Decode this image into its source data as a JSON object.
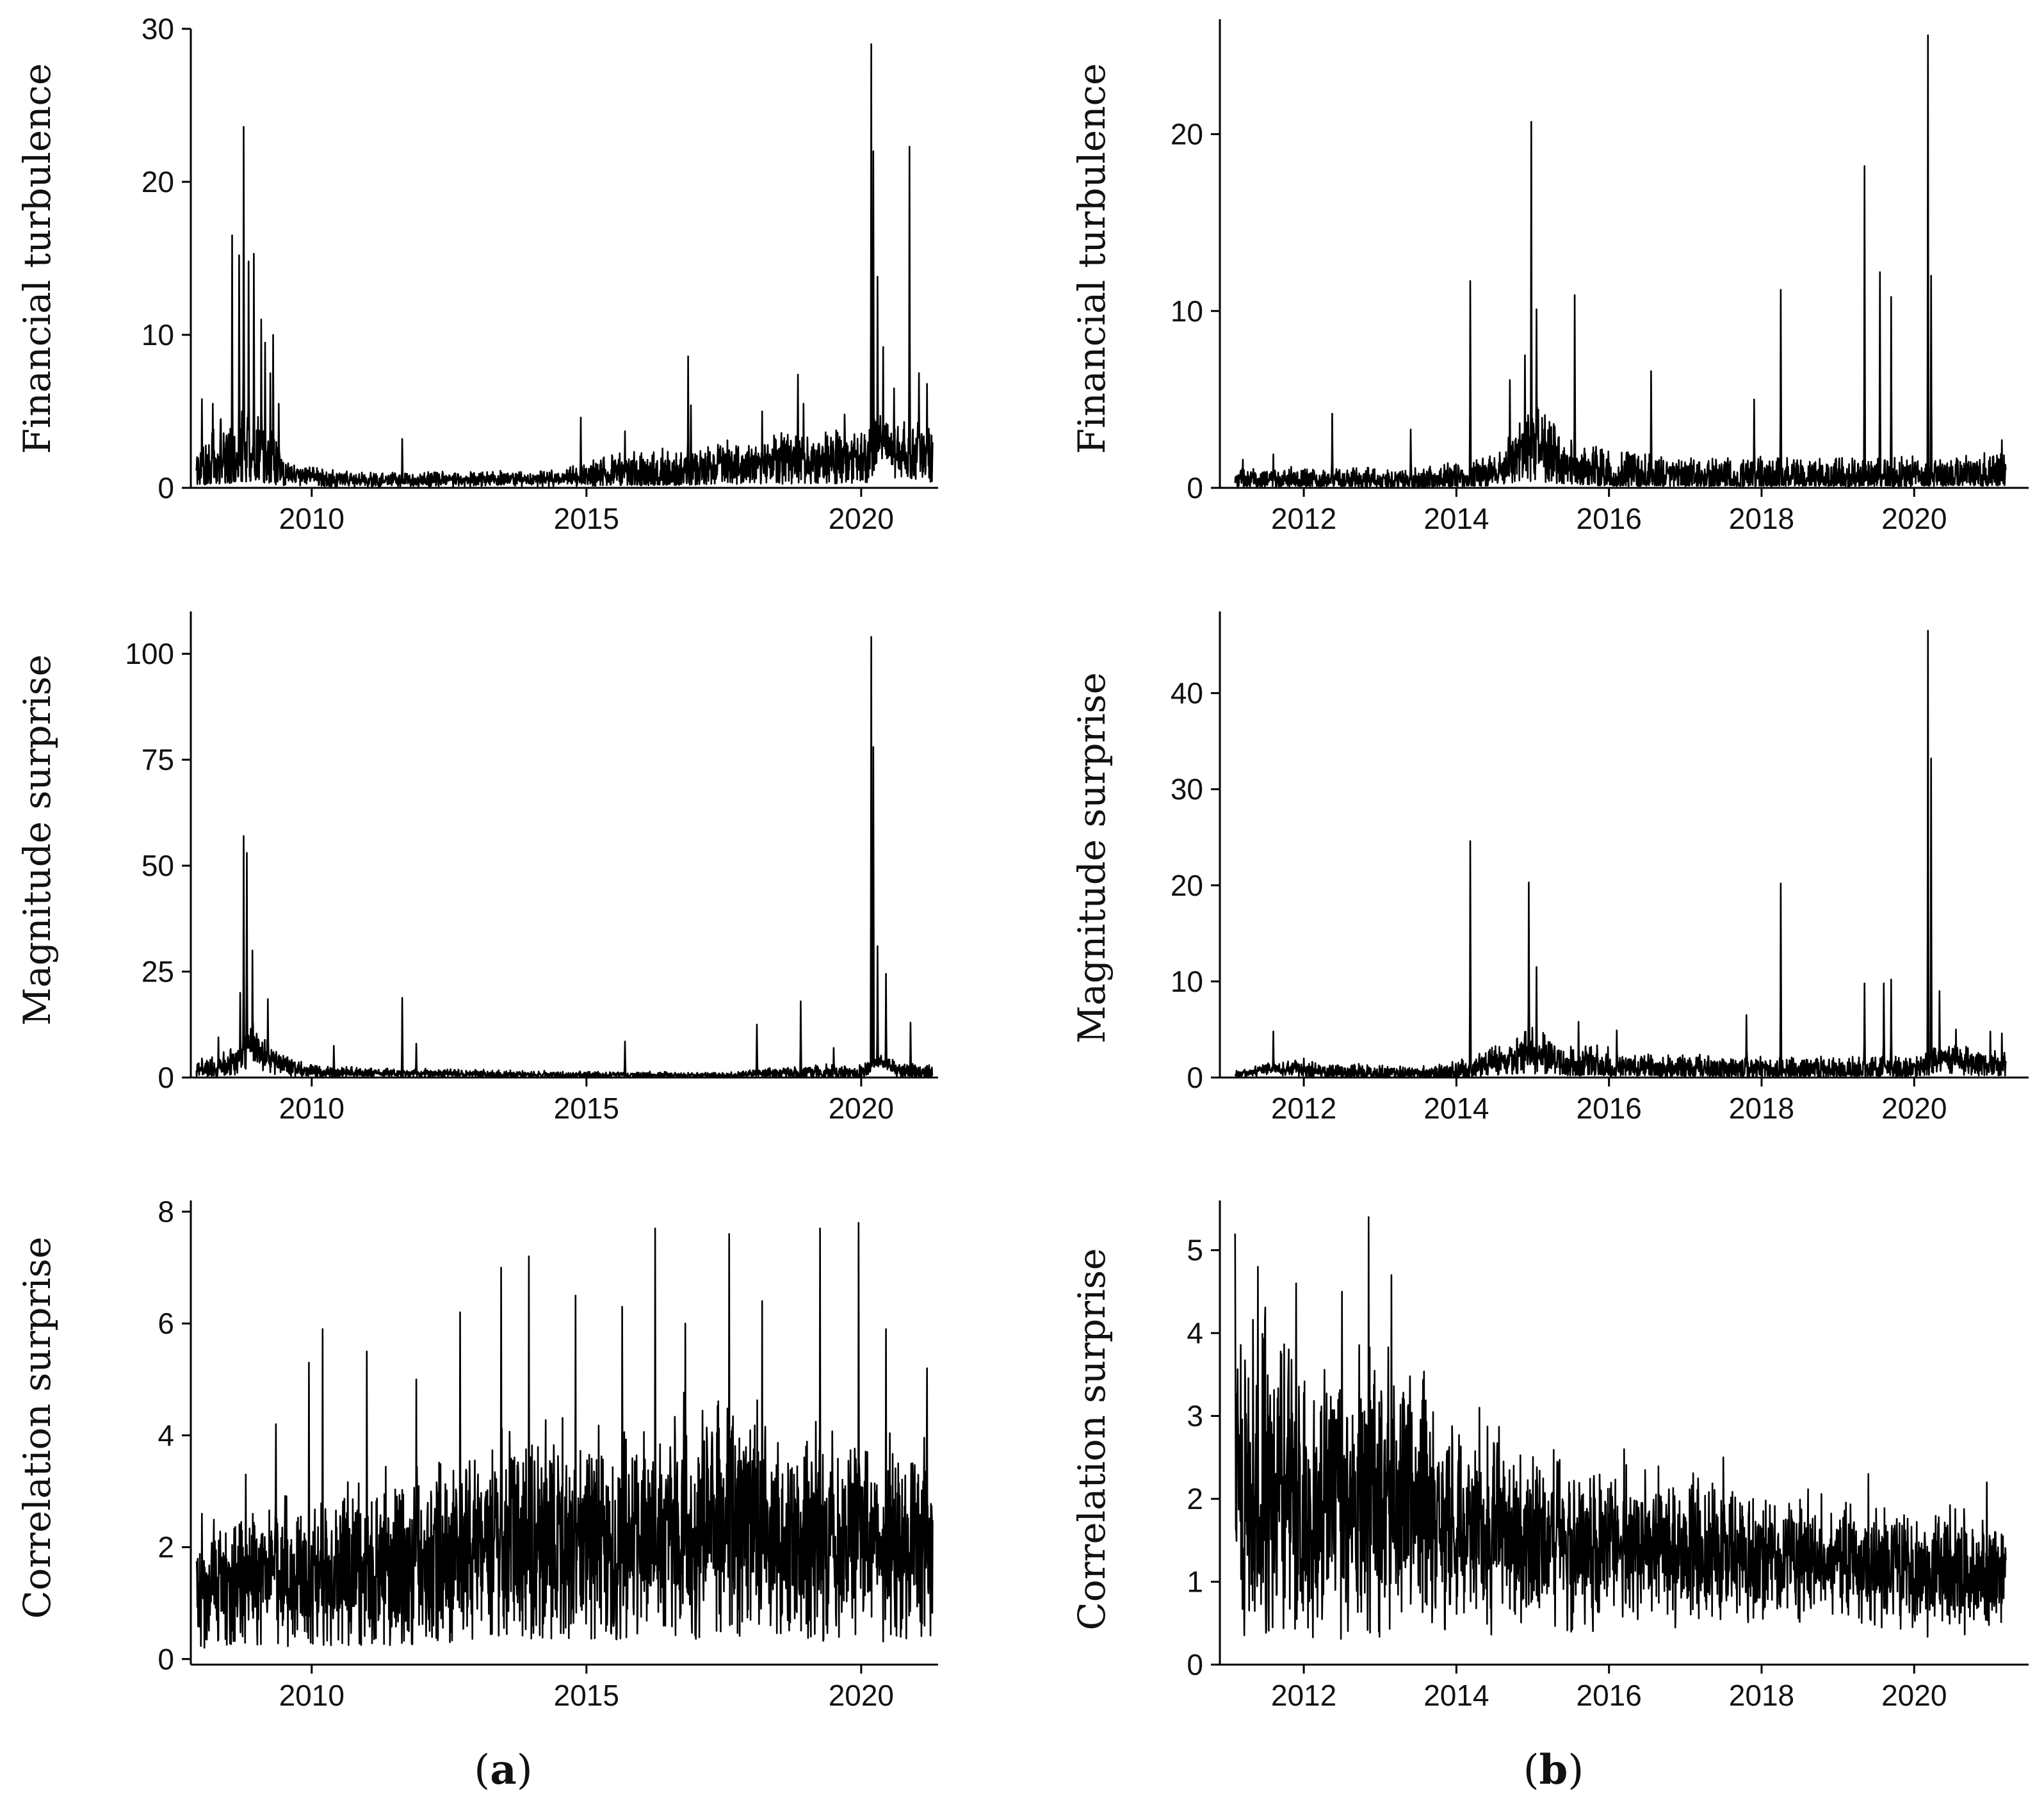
{
  "figure": {
    "panel_labels": {
      "a": {
        "open": "(",
        "letter": "a",
        "close": ")"
      },
      "b": {
        "open": "(",
        "letter": "b",
        "close": ")"
      }
    }
  },
  "chart_data": [
    {
      "id": "a-turbulence",
      "type": "line",
      "panel": "a",
      "row": 0,
      "title": "",
      "xlabel": "",
      "ylabel": "Financial turbulence",
      "xlim": [
        2007.8,
        2021.4
      ],
      "ylim": [
        0,
        30
      ],
      "xticks": [
        2010,
        2015,
        2020
      ],
      "yticks": [
        0,
        10,
        20,
        30
      ],
      "grid": false,
      "legend": "none",
      "baseline": [
        [
          2007.9,
          1.1
        ],
        [
          2008.5,
          2.0
        ],
        [
          2009.0,
          2.5
        ],
        [
          2009.5,
          1.0
        ],
        [
          2010.5,
          0.5
        ],
        [
          2012.0,
          0.5
        ],
        [
          2014.5,
          0.6
        ],
        [
          2015.5,
          1.0
        ],
        [
          2017.0,
          1.2
        ],
        [
          2018.5,
          1.7
        ],
        [
          2020.0,
          1.8
        ],
        [
          2020.4,
          3.0
        ],
        [
          2020.9,
          2.0
        ],
        [
          2021.3,
          2.0
        ]
      ],
      "amplitude": [
        [
          2007.9,
          1.2
        ],
        [
          2008.5,
          2.5
        ],
        [
          2009.2,
          2.0
        ],
        [
          2009.6,
          0.6
        ],
        [
          2011.0,
          0.4
        ],
        [
          2014.5,
          0.4
        ],
        [
          2015.5,
          1.0
        ],
        [
          2018.0,
          1.3
        ],
        [
          2019.5,
          1.5
        ],
        [
          2021.3,
          1.6
        ]
      ],
      "spikes": [
        [
          2008.0,
          5.8
        ],
        [
          2008.2,
          5.5
        ],
        [
          2008.35,
          4.5
        ],
        [
          2008.55,
          16.5
        ],
        [
          2008.68,
          15.2
        ],
        [
          2008.76,
          23.6
        ],
        [
          2008.85,
          14.8
        ],
        [
          2008.95,
          15.3
        ],
        [
          2009.08,
          11.0
        ],
        [
          2009.15,
          9.5
        ],
        [
          2009.25,
          7.5
        ],
        [
          2009.3,
          10.0
        ],
        [
          2009.4,
          5.5
        ],
        [
          2011.65,
          3.2
        ],
        [
          2014.9,
          4.6
        ],
        [
          2015.7,
          3.7
        ],
        [
          2016.85,
          8.6
        ],
        [
          2016.9,
          5.4
        ],
        [
          2018.2,
          5.0
        ],
        [
          2018.85,
          7.4
        ],
        [
          2018.95,
          5.5
        ],
        [
          2019.7,
          4.8
        ],
        [
          2020.18,
          29.0
        ],
        [
          2020.22,
          22.0
        ],
        [
          2020.3,
          13.8
        ],
        [
          2020.4,
          9.2
        ],
        [
          2020.6,
          6.5
        ],
        [
          2020.88,
          22.3
        ],
        [
          2021.05,
          7.5
        ],
        [
          2021.2,
          6.8
        ]
      ],
      "n_points": 2100,
      "seed": 11
    },
    {
      "id": "b-turbulence",
      "type": "line",
      "panel": "b",
      "row": 0,
      "title": "",
      "xlabel": "",
      "ylabel": "Financial turbulence",
      "xlim": [
        2010.9,
        2021.5
      ],
      "ylim": [
        0,
        26.5
      ],
      "xticks": [
        2012,
        2014,
        2016,
        2018,
        2020
      ],
      "yticks": [
        0,
        10,
        20
      ],
      "grid": false,
      "legend": "none",
      "baseline": [
        [
          2011.1,
          0.5
        ],
        [
          2012.0,
          0.5
        ],
        [
          2013.5,
          0.4
        ],
        [
          2014.5,
          0.8
        ],
        [
          2014.95,
          2.5
        ],
        [
          2015.3,
          1.5
        ],
        [
          2016.0,
          0.7
        ],
        [
          2018.0,
          0.6
        ],
        [
          2020.0,
          0.6
        ],
        [
          2021.2,
          0.8
        ]
      ],
      "amplitude": [
        [
          2011.1,
          0.5
        ],
        [
          2013.5,
          0.5
        ],
        [
          2014.6,
          0.8
        ],
        [
          2015.0,
          2.2
        ],
        [
          2015.5,
          1.2
        ],
        [
          2017.0,
          0.9
        ],
        [
          2019.0,
          0.8
        ],
        [
          2021.2,
          0.9
        ]
      ],
      "spikes": [
        [
          2011.2,
          1.6
        ],
        [
          2011.6,
          1.9
        ],
        [
          2012.37,
          4.2
        ],
        [
          2013.4,
          3.3
        ],
        [
          2014.18,
          11.7
        ],
        [
          2014.7,
          6.1
        ],
        [
          2014.9,
          7.5
        ],
        [
          2014.98,
          20.7
        ],
        [
          2015.05,
          10.1
        ],
        [
          2015.55,
          10.9
        ],
        [
          2016.55,
          6.6
        ],
        [
          2017.9,
          5.0
        ],
        [
          2018.25,
          11.2
        ],
        [
          2019.35,
          18.2
        ],
        [
          2019.55,
          12.2
        ],
        [
          2019.7,
          10.8
        ],
        [
          2020.18,
          25.6
        ],
        [
          2020.22,
          12.0
        ],
        [
          2021.15,
          2.7
        ]
      ],
      "n_points": 2200,
      "seed": 23
    },
    {
      "id": "a-magnitude",
      "type": "line",
      "panel": "a",
      "row": 1,
      "title": "",
      "xlabel": "",
      "ylabel": "Magnitude surprise",
      "xlim": [
        2007.8,
        2021.4
      ],
      "ylim": [
        0,
        110
      ],
      "xticks": [
        2010,
        2015,
        2020
      ],
      "yticks": [
        0,
        25,
        50,
        75,
        100
      ],
      "grid": false,
      "legend": "none",
      "baseline": [
        [
          2007.9,
          1.5
        ],
        [
          2008.5,
          2.5
        ],
        [
          2008.9,
          8.0
        ],
        [
          2009.3,
          4.0
        ],
        [
          2009.8,
          1.5
        ],
        [
          2011.0,
          1.0
        ],
        [
          2012.0,
          1.0
        ],
        [
          2014.0,
          0.7
        ],
        [
          2017.5,
          0.5
        ],
        [
          2018.5,
          1.0
        ],
        [
          2020.0,
          1.0
        ],
        [
          2020.3,
          4.0
        ],
        [
          2020.7,
          1.5
        ],
        [
          2021.3,
          1.2
        ]
      ],
      "amplitude": [
        [
          2007.9,
          1.5
        ],
        [
          2008.8,
          4.0
        ],
        [
          2009.5,
          2.0
        ],
        [
          2010.5,
          1.0
        ],
        [
          2013.0,
          0.8
        ],
        [
          2017.5,
          0.5
        ],
        [
          2019.0,
          1.5
        ],
        [
          2021.3,
          1.5
        ]
      ],
      "spikes": [
        [
          2008.0,
          4.5
        ],
        [
          2008.3,
          9.5
        ],
        [
          2008.7,
          20.0
        ],
        [
          2008.76,
          57.0
        ],
        [
          2008.82,
          53.0
        ],
        [
          2008.92,
          30.0
        ],
        [
          2009.2,
          18.5
        ],
        [
          2010.4,
          7.5
        ],
        [
          2011.65,
          18.8
        ],
        [
          2011.9,
          8.0
        ],
        [
          2015.7,
          8.5
        ],
        [
          2018.1,
          12.5
        ],
        [
          2018.9,
          18.0
        ],
        [
          2019.5,
          7.0
        ],
        [
          2020.18,
          104.0
        ],
        [
          2020.22,
          78.0
        ],
        [
          2020.3,
          31.0
        ],
        [
          2020.45,
          24.5
        ],
        [
          2020.9,
          13.0
        ]
      ],
      "n_points": 2100,
      "seed": 37
    },
    {
      "id": "b-magnitude",
      "type": "line",
      "panel": "b",
      "row": 1,
      "title": "",
      "xlabel": "",
      "ylabel": "Magnitude surprise",
      "xlim": [
        2010.9,
        2021.5
      ],
      "ylim": [
        0,
        48.5
      ],
      "xticks": [
        2012,
        2014,
        2016,
        2018,
        2020
      ],
      "yticks": [
        0,
        10,
        20,
        30,
        40
      ],
      "grid": false,
      "legend": "none",
      "baseline": [
        [
          2011.1,
          0.3
        ],
        [
          2011.6,
          1.0
        ],
        [
          2012.5,
          0.5
        ],
        [
          2014.0,
          0.4
        ],
        [
          2014.5,
          1.5
        ],
        [
          2015.0,
          2.5
        ],
        [
          2015.5,
          1.3
        ],
        [
          2016.5,
          1.0
        ],
        [
          2018.0,
          0.8
        ],
        [
          2020.0,
          0.8
        ],
        [
          2020.3,
          2.0
        ],
        [
          2021.2,
          1.0
        ]
      ],
      "amplitude": [
        [
          2011.1,
          0.3
        ],
        [
          2012.0,
          0.8
        ],
        [
          2013.5,
          0.5
        ],
        [
          2014.5,
          1.5
        ],
        [
          2015.0,
          2.0
        ],
        [
          2016.5,
          1.2
        ],
        [
          2019.0,
          1.0
        ],
        [
          2021.2,
          1.3
        ]
      ],
      "spikes": [
        [
          2011.6,
          4.8
        ],
        [
          2012.0,
          2.0
        ],
        [
          2014.18,
          24.6
        ],
        [
          2014.95,
          20.3
        ],
        [
          2015.05,
          11.5
        ],
        [
          2015.6,
          5.8
        ],
        [
          2016.1,
          4.9
        ],
        [
          2017.8,
          6.5
        ],
        [
          2018.25,
          20.2
        ],
        [
          2019.35,
          9.8
        ],
        [
          2019.6,
          9.8
        ],
        [
          2019.7,
          10.2
        ],
        [
          2020.18,
          46.5
        ],
        [
          2020.22,
          33.2
        ],
        [
          2020.33,
          9.0
        ],
        [
          2020.55,
          5.0
        ],
        [
          2021.0,
          4.8
        ],
        [
          2021.15,
          4.6
        ]
      ],
      "n_points": 2200,
      "seed": 51
    },
    {
      "id": "a-correlation",
      "type": "line",
      "panel": "a",
      "row": 2,
      "title": "",
      "xlabel": "",
      "ylabel": "Correlation surprise",
      "xlim": [
        2007.8,
        2021.4
      ],
      "ylim": [
        -0.1,
        8.2
      ],
      "xticks": [
        2010,
        2015,
        2020
      ],
      "yticks": [
        0,
        2,
        4,
        6,
        8
      ],
      "grid": false,
      "legend": "none",
      "baseline": [
        [
          2007.9,
          1.2
        ],
        [
          2009.0,
          1.4
        ],
        [
          2010.0,
          1.5
        ],
        [
          2011.0,
          1.6
        ],
        [
          2012.0,
          1.7
        ],
        [
          2013.0,
          2.0
        ],
        [
          2014.0,
          2.1
        ],
        [
          2015.0,
          2.1
        ],
        [
          2016.0,
          2.2
        ],
        [
          2017.0,
          2.4
        ],
        [
          2017.5,
          2.6
        ],
        [
          2018.5,
          2.3
        ],
        [
          2019.5,
          2.1
        ],
        [
          2020.5,
          2.0
        ],
        [
          2021.3,
          1.9
        ]
      ],
      "amplitude": [
        [
          2007.9,
          0.8
        ],
        [
          2009.5,
          1.1
        ],
        [
          2011.0,
          1.3
        ],
        [
          2013.0,
          1.5
        ],
        [
          2015.0,
          1.6
        ],
        [
          2017.0,
          1.7
        ],
        [
          2019.0,
          1.6
        ],
        [
          2021.3,
          1.5
        ]
      ],
      "spikes": [
        [
          2008.0,
          2.6
        ],
        [
          2008.8,
          3.3
        ],
        [
          2009.35,
          4.2
        ],
        [
          2009.95,
          5.3
        ],
        [
          2010.2,
          5.9
        ],
        [
          2011.0,
          5.5
        ],
        [
          2011.9,
          5.0
        ],
        [
          2012.7,
          6.2
        ],
        [
          2013.45,
          7.0
        ],
        [
          2013.95,
          7.2
        ],
        [
          2014.8,
          6.5
        ],
        [
          2015.65,
          6.3
        ],
        [
          2016.25,
          7.7
        ],
        [
          2016.8,
          6.0
        ],
        [
          2017.6,
          7.6
        ],
        [
          2018.2,
          6.4
        ],
        [
          2019.25,
          7.7
        ],
        [
          2019.95,
          7.8
        ],
        [
          2020.45,
          5.9
        ],
        [
          2021.2,
          5.2
        ]
      ],
      "n_points": 2100,
      "seed": 73
    },
    {
      "id": "b-correlation",
      "type": "line",
      "panel": "b",
      "row": 2,
      "title": "",
      "xlabel": "",
      "ylabel": "Correlation surprise",
      "xlim": [
        2010.9,
        2021.5
      ],
      "ylim": [
        0,
        5.6
      ],
      "xticks": [
        2012,
        2014,
        2016,
        2018,
        2020
      ],
      "yticks": [
        0,
        1,
        2,
        3,
        4,
        5
      ],
      "grid": false,
      "legend": "none",
      "baseline": [
        [
          2011.1,
          2.2
        ],
        [
          2012.0,
          2.0
        ],
        [
          2012.8,
          2.1
        ],
        [
          2013.5,
          2.0
        ],
        [
          2014.0,
          1.7
        ],
        [
          2015.0,
          1.5
        ],
        [
          2016.0,
          1.45
        ],
        [
          2017.0,
          1.4
        ],
        [
          2018.0,
          1.3
        ],
        [
          2019.0,
          1.25
        ],
        [
          2020.0,
          1.15
        ],
        [
          2021.2,
          1.1
        ]
      ],
      "amplitude": [
        [
          2011.1,
          1.6
        ],
        [
          2012.0,
          1.4
        ],
        [
          2013.0,
          1.4
        ],
        [
          2014.0,
          1.0
        ],
        [
          2015.0,
          0.8
        ],
        [
          2017.0,
          0.65
        ],
        [
          2019.0,
          0.6
        ],
        [
          2021.2,
          0.55
        ]
      ],
      "spikes": [
        [
          2011.1,
          5.2
        ],
        [
          2011.4,
          4.8
        ],
        [
          2011.9,
          4.6
        ],
        [
          2012.5,
          4.5
        ],
        [
          2012.85,
          5.4
        ],
        [
          2013.15,
          4.7
        ],
        [
          2014.3,
          3.1
        ],
        [
          2016.2,
          2.6
        ],
        [
          2017.5,
          2.5
        ],
        [
          2019.4,
          2.3
        ],
        [
          2020.95,
          2.2
        ]
      ],
      "n_points": 2200,
      "seed": 97
    }
  ]
}
